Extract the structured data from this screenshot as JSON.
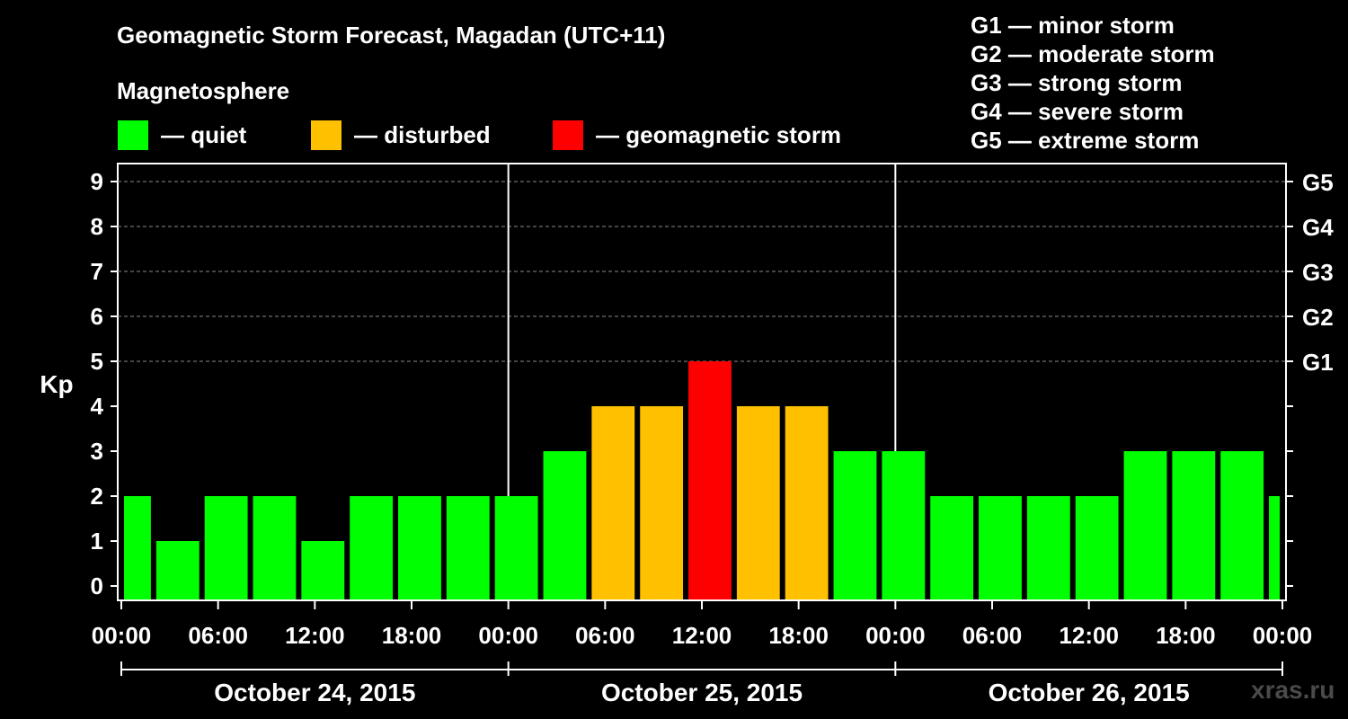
{
  "title": "Geomagnetic Storm Forecast, Magadan (UTC+11)",
  "legend": {
    "heading": "Magnetosphere",
    "items": [
      {
        "label": "— quiet",
        "color": "#00ff00"
      },
      {
        "label": "— disturbed",
        "color": "#ffc000"
      },
      {
        "label": "— geomagnetic storm",
        "color": "#ff0000"
      }
    ]
  },
  "g_scale": [
    "G1 — minor storm",
    "G2 — moderate storm",
    "G3 — strong storm",
    "G4 — severe storm",
    "G5 — extreme storm"
  ],
  "watermark": "xras.ru",
  "chart_data": {
    "type": "bar",
    "title": "Geomagnetic Storm Forecast, Magadan (UTC+11)",
    "ylabel": "Kp",
    "xlabel": "",
    "ylim": [
      0,
      9
    ],
    "yticks": [
      "0",
      "1",
      "2",
      "3",
      "4",
      "5",
      "6",
      "7",
      "8",
      "9"
    ],
    "right_axis": [
      {
        "kp": 5,
        "label": "G1"
      },
      {
        "kp": 6,
        "label": "G2"
      },
      {
        "kp": 7,
        "label": "G3"
      },
      {
        "kp": 8,
        "label": "G4"
      },
      {
        "kp": 9,
        "label": "G5"
      }
    ],
    "x_range_hours": [
      0,
      72
    ],
    "xticks": [
      {
        "hour": 0,
        "label": "00:00"
      },
      {
        "hour": 6,
        "label": "06:00"
      },
      {
        "hour": 12,
        "label": "12:00"
      },
      {
        "hour": 18,
        "label": "18:00"
      },
      {
        "hour": 24,
        "label": "00:00"
      },
      {
        "hour": 30,
        "label": "06:00"
      },
      {
        "hour": 36,
        "label": "12:00"
      },
      {
        "hour": 42,
        "label": "18:00"
      },
      {
        "hour": 48,
        "label": "00:00"
      },
      {
        "hour": 54,
        "label": "06:00"
      },
      {
        "hour": 60,
        "label": "12:00"
      },
      {
        "hour": 66,
        "label": "18:00"
      },
      {
        "hour": 72,
        "label": "00:00"
      }
    ],
    "days": [
      {
        "label": "October 24, 2015",
        "start_hour": 0,
        "end_hour": 24
      },
      {
        "label": "October 25, 2015",
        "start_hour": 24,
        "end_hour": 48
      },
      {
        "label": "October 26, 2015",
        "start_hour": 48,
        "end_hour": 72
      }
    ],
    "bars": [
      {
        "start_hour": 0,
        "end_hour": 2,
        "kp": 2,
        "level": "quiet"
      },
      {
        "start_hour": 2,
        "end_hour": 5,
        "kp": 1,
        "level": "quiet"
      },
      {
        "start_hour": 5,
        "end_hour": 8,
        "kp": 2,
        "level": "quiet"
      },
      {
        "start_hour": 8,
        "end_hour": 11,
        "kp": 2,
        "level": "quiet"
      },
      {
        "start_hour": 11,
        "end_hour": 14,
        "kp": 1,
        "level": "quiet"
      },
      {
        "start_hour": 14,
        "end_hour": 17,
        "kp": 2,
        "level": "quiet"
      },
      {
        "start_hour": 17,
        "end_hour": 20,
        "kp": 2,
        "level": "quiet"
      },
      {
        "start_hour": 20,
        "end_hour": 23,
        "kp": 2,
        "level": "quiet"
      },
      {
        "start_hour": 23,
        "end_hour": 26,
        "kp": 2,
        "level": "quiet"
      },
      {
        "start_hour": 26,
        "end_hour": 29,
        "kp": 3,
        "level": "quiet"
      },
      {
        "start_hour": 29,
        "end_hour": 32,
        "kp": 4,
        "level": "disturbed"
      },
      {
        "start_hour": 32,
        "end_hour": 35,
        "kp": 4,
        "level": "disturbed"
      },
      {
        "start_hour": 35,
        "end_hour": 38,
        "kp": 5,
        "level": "storm"
      },
      {
        "start_hour": 38,
        "end_hour": 41,
        "kp": 4,
        "level": "disturbed"
      },
      {
        "start_hour": 41,
        "end_hour": 44,
        "kp": 4,
        "level": "disturbed"
      },
      {
        "start_hour": 44,
        "end_hour": 47,
        "kp": 3,
        "level": "quiet"
      },
      {
        "start_hour": 47,
        "end_hour": 50,
        "kp": 3,
        "level": "quiet"
      },
      {
        "start_hour": 50,
        "end_hour": 53,
        "kp": 2,
        "level": "quiet"
      },
      {
        "start_hour": 53,
        "end_hour": 56,
        "kp": 2,
        "level": "quiet"
      },
      {
        "start_hour": 56,
        "end_hour": 59,
        "kp": 2,
        "level": "quiet"
      },
      {
        "start_hour": 59,
        "end_hour": 62,
        "kp": 2,
        "level": "quiet"
      },
      {
        "start_hour": 62,
        "end_hour": 65,
        "kp": 3,
        "level": "quiet"
      },
      {
        "start_hour": 65,
        "end_hour": 68,
        "kp": 3,
        "level": "quiet"
      },
      {
        "start_hour": 68,
        "end_hour": 71,
        "kp": 3,
        "level": "quiet"
      },
      {
        "start_hour": 71,
        "end_hour": 72,
        "kp": 2,
        "level": "quiet"
      }
    ],
    "level_colors": {
      "quiet": "#00ff00",
      "disturbed": "#ffc000",
      "storm": "#ff0000"
    }
  }
}
